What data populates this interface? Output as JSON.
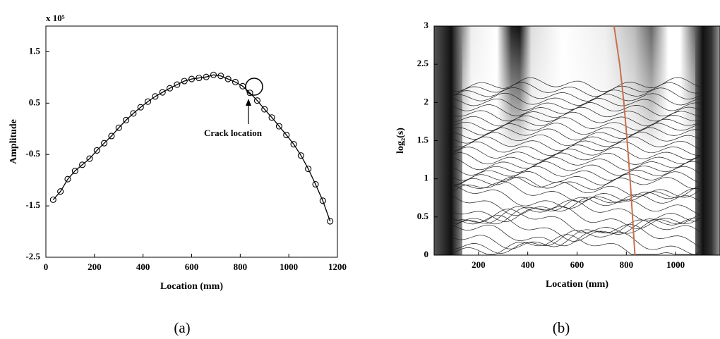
{
  "chart_data": [
    {
      "type": "line",
      "title": "x 10⁵",
      "xlabel": "Location (mm)",
      "ylabel": "Amplitude",
      "caption": "(a)",
      "annotation": "Crack location",
      "x": [
        30,
        60,
        90,
        120,
        150,
        180,
        210,
        240,
        270,
        300,
        330,
        360,
        390,
        420,
        450,
        480,
        510,
        540,
        570,
        600,
        630,
        660,
        690,
        720,
        750,
        780,
        810,
        840,
        870,
        900,
        930,
        960,
        990,
        1020,
        1050,
        1080,
        1110,
        1140,
        1170
      ],
      "series": [
        {
          "color": "#000000",
          "values": [
            -1.38,
            -1.22,
            -0.98,
            -0.82,
            -0.7,
            -0.58,
            -0.42,
            -0.28,
            -0.14,
            0.02,
            0.17,
            0.3,
            0.42,
            0.53,
            0.63,
            0.71,
            0.79,
            0.86,
            0.93,
            0.97,
            0.99,
            1.01,
            1.05,
            1.03,
            0.97,
            0.91,
            0.83,
            0.7,
            0.55,
            0.38,
            0.22,
            0.05,
            -0.12,
            -0.3,
            -0.52,
            -0.78,
            -1.08,
            -1.4,
            -1.8
          ]
        }
      ],
      "xlim": [
        0,
        1200
      ],
      "xticks": [
        0,
        200,
        400,
        600,
        800,
        1000,
        1200
      ],
      "ylim": [
        -2.5,
        2
      ],
      "yticks": [
        -2.5,
        -1.5,
        -0.5,
        0.5,
        1.5
      ]
    },
    {
      "type": "contour",
      "xlabel": "Location (mm)",
      "ylabel": "log₂(s)",
      "caption": "(b)",
      "series": [
        {
          "color": "#c8704e",
          "x": [
            750,
            773,
            790,
            803,
            815,
            825,
            835
          ],
          "values": [
            3,
            2.5,
            2,
            1.5,
            1,
            0.5,
            0
          ]
        }
      ],
      "xlim": [
        20,
        1180
      ],
      "xticks": [
        200,
        400,
        600,
        800,
        1000
      ],
      "ylim": [
        0,
        3
      ],
      "yticks": [
        0,
        0.5,
        1,
        1.5,
        2,
        2.5,
        3
      ]
    }
  ]
}
